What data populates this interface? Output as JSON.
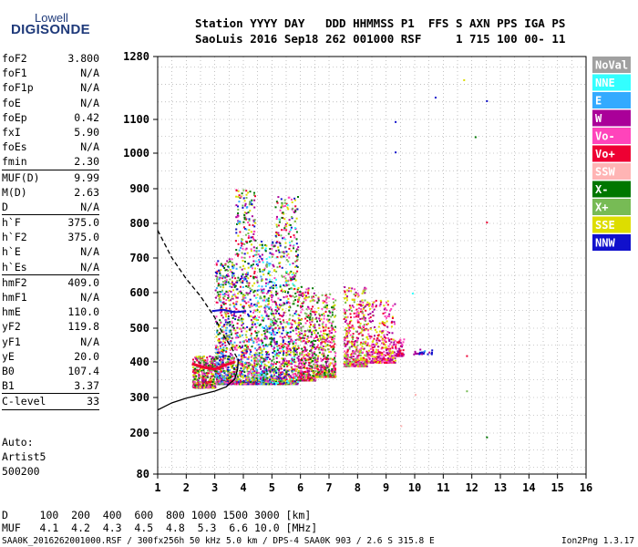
{
  "logo": {
    "line1": "Lowell",
    "line2": "DIGISONDE"
  },
  "header": {
    "labels": "Station YYYY DAY   DDD HHMMSS P1  FFS S AXN PPS IGA PS",
    "values": "SaoLuis 2016 Sep18 262 001000 RSF     1 715 100 00- 11"
  },
  "params": [
    {
      "k": "foF2",
      "v": "3.800"
    },
    {
      "k": "foF1",
      "v": "N/A"
    },
    {
      "k": "foF1p",
      "v": "N/A"
    },
    {
      "k": "foE",
      "v": "N/A"
    },
    {
      "k": "foEp",
      "v": "0.42"
    },
    {
      "k": "fxI",
      "v": "5.90"
    },
    {
      "k": "foEs",
      "v": "N/A"
    },
    {
      "k": "fmin",
      "v": "2.30",
      "sep": true
    },
    {
      "k": "MUF(D)",
      "v": "9.99"
    },
    {
      "k": "M(D)",
      "v": "2.63"
    },
    {
      "k": "D",
      "v": "N/A",
      "sep": true
    },
    {
      "k": "h`F",
      "v": "375.0"
    },
    {
      "k": "h`F2",
      "v": "375.0"
    },
    {
      "k": "h`E",
      "v": "N/A"
    },
    {
      "k": "h`Es",
      "v": "N/A",
      "sep": true
    },
    {
      "k": "hmF2",
      "v": "409.0"
    },
    {
      "k": "hmF1",
      "v": "N/A"
    },
    {
      "k": "hmE",
      "v": "110.0"
    },
    {
      "k": "yF2",
      "v": "119.8"
    },
    {
      "k": "yF1",
      "v": "N/A"
    },
    {
      "k": "yE",
      "v": "20.0"
    },
    {
      "k": "B0",
      "v": "107.4"
    },
    {
      "k": "B1",
      "v": "3.37",
      "sep": true
    },
    {
      "k": "C-level",
      "v": "33",
      "sep": true
    }
  ],
  "auto": [
    "Auto:",
    "Artist5",
    "500200"
  ],
  "muf_table": {
    "d_line": "D     100  200  400  600  800 1000 1500 3000 [km]",
    "muf_line": "MUF   4.1  4.2  4.3  4.5  4.8  5.3  6.6 10.0 [MHz]"
  },
  "footer": {
    "left": "SAA0K_2016262001000.RSF / 300fx256h 50 kHz 5.0 km / DPS-4 SAA0K 903 / 2.6 S 315.8 E",
    "right": "Ion2Png 1.3.17"
  },
  "legend": [
    {
      "label": "NoVal",
      "color": "#a0a0a0"
    },
    {
      "label": "NNE",
      "color": "#33ffff"
    },
    {
      "label": "E",
      "color": "#33aaff"
    },
    {
      "label": "W",
      "color": "#aa0099"
    },
    {
      "label": "Vo-",
      "color": "#ff44bb"
    },
    {
      "label": "Vo+",
      "color": "#ee0033"
    },
    {
      "label": "SSW",
      "color": "#ffb4b4"
    },
    {
      "label": "X-",
      "color": "#007700"
    },
    {
      "label": "X+",
      "color": "#77bb55"
    },
    {
      "label": "SSE",
      "color": "#dddd00"
    },
    {
      "label": "NNW",
      "color": "#1010cc"
    }
  ],
  "chart_data": {
    "type": "scatter",
    "xlabel": "",
    "ylabel": "",
    "x_ticks": [
      1,
      2,
      3,
      4,
      5,
      6,
      7,
      8,
      9,
      10,
      11,
      12,
      13,
      14,
      15,
      16
    ],
    "y_ticks": [
      80,
      200,
      300,
      400,
      500,
      600,
      700,
      800,
      900,
      1000,
      1100,
      1280
    ],
    "xlim": [
      1,
      16
    ],
    "ylim": [
      80,
      1280
    ],
    "grid": true,
    "clusters": [
      {
        "x": [
          2.2,
          3.0
        ],
        "y": [
          330,
          420
        ],
        "n": 500,
        "colors": [
          9,
          5,
          4,
          3,
          7,
          8
        ]
      },
      {
        "x": [
          3.0,
          3.7
        ],
        "y": [
          340,
          700
        ],
        "n": 700,
        "colors": [
          9,
          3,
          4,
          7,
          8,
          2,
          10,
          5
        ]
      },
      {
        "x": [
          3.7,
          4.4
        ],
        "y": [
          340,
          900
        ],
        "n": 650,
        "colors": [
          9,
          3,
          4,
          7,
          8,
          2,
          10,
          5
        ]
      },
      {
        "x": [
          4.4,
          5.1
        ],
        "y": [
          340,
          750
        ],
        "n": 600,
        "colors": [
          9,
          3,
          4,
          7,
          8,
          1,
          2,
          10
        ]
      },
      {
        "x": [
          5.1,
          5.9
        ],
        "y": [
          340,
          880
        ],
        "n": 700,
        "colors": [
          9,
          3,
          4,
          7,
          8,
          1,
          10,
          5
        ]
      },
      {
        "x": [
          5.9,
          6.5
        ],
        "y": [
          350,
          620
        ],
        "n": 450,
        "colors": [
          9,
          3,
          4,
          7,
          8,
          5
        ]
      },
      {
        "x": [
          6.5,
          7.2
        ],
        "y": [
          360,
          600
        ],
        "n": 450,
        "colors": [
          9,
          3,
          4,
          7,
          8,
          5
        ]
      },
      {
        "x": [
          7.5,
          8.3
        ],
        "y": [
          390,
          620
        ],
        "n": 450,
        "colors": [
          3,
          4,
          5,
          8,
          9
        ]
      },
      {
        "x": [
          8.3,
          9.3
        ],
        "y": [
          400,
          580
        ],
        "n": 350,
        "colors": [
          3,
          4,
          5,
          9
        ]
      },
      {
        "x": [
          9.3,
          9.6
        ],
        "y": [
          420,
          470
        ],
        "n": 70,
        "colors": [
          3,
          4,
          5
        ]
      },
      {
        "x": [
          9.9,
          10.6
        ],
        "y": [
          425,
          440
        ],
        "n": 25,
        "colors": [
          2,
          10,
          3
        ]
      }
    ],
    "outliers": [
      {
        "x": 9.3,
        "y": 1095,
        "c": 10
      },
      {
        "x": 9.3,
        "y": 1005,
        "c": 10
      },
      {
        "x": 10.7,
        "y": 1165,
        "c": 10
      },
      {
        "x": 11.7,
        "y": 1215,
        "c": 9
      },
      {
        "x": 12.1,
        "y": 1050,
        "c": 7
      },
      {
        "x": 12.5,
        "y": 1155,
        "c": 10
      },
      {
        "x": 12.5,
        "y": 805,
        "c": 5
      },
      {
        "x": 11.8,
        "y": 420,
        "c": 5
      },
      {
        "x": 12.5,
        "y": 190,
        "c": 7
      },
      {
        "x": 9.5,
        "y": 222,
        "c": 6
      },
      {
        "x": 10.0,
        "y": 310,
        "c": 6
      },
      {
        "x": 11.8,
        "y": 320,
        "c": 8
      },
      {
        "x": 9.9,
        "y": 600,
        "c": 1
      }
    ],
    "profile_solid": [
      [
        1.0,
        265
      ],
      [
        1.5,
        285
      ],
      [
        2.0,
        298
      ],
      [
        2.5,
        308
      ],
      [
        3.0,
        318
      ],
      [
        3.4,
        330
      ],
      [
        3.7,
        352
      ],
      [
        3.8,
        380
      ],
      [
        3.82,
        409
      ]
    ],
    "profile_dashed": [
      [
        1.0,
        780
      ],
      [
        1.5,
        700
      ],
      [
        2.0,
        640
      ],
      [
        2.5,
        590
      ],
      [
        3.0,
        530
      ],
      [
        3.3,
        480
      ],
      [
        3.6,
        440
      ],
      [
        3.8,
        409
      ]
    ],
    "trace_blue": [
      [
        2.9,
        548
      ],
      [
        3.3,
        552
      ],
      [
        3.7,
        545
      ],
      [
        4.1,
        548
      ]
    ],
    "trace_red": [
      [
        2.2,
        395
      ],
      [
        2.6,
        385
      ],
      [
        3.0,
        380
      ],
      [
        3.4,
        392
      ],
      [
        3.7,
        400
      ]
    ]
  }
}
